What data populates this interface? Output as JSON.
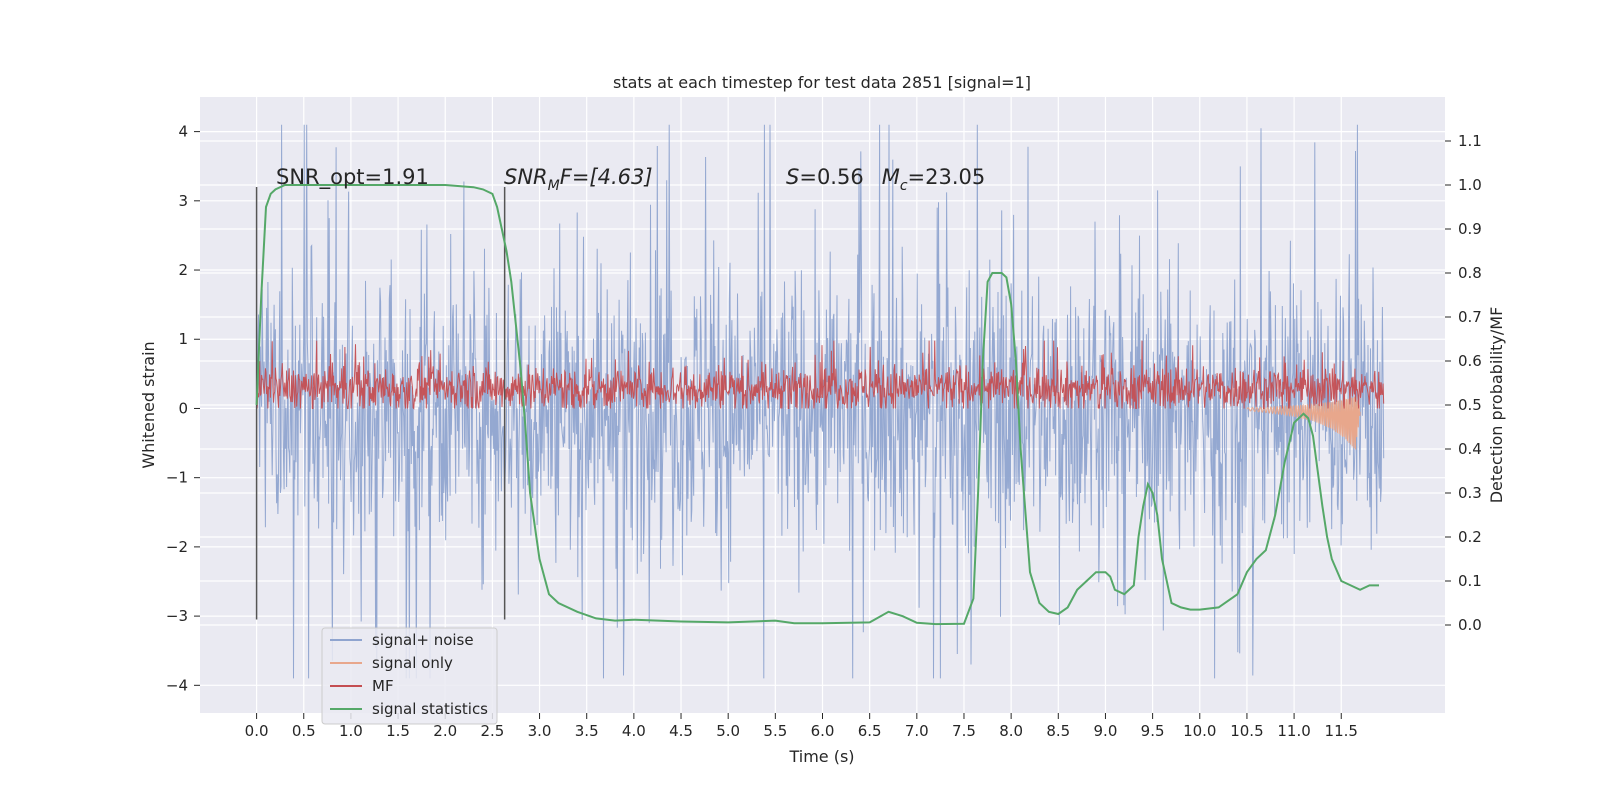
{
  "chart_data": {
    "type": "line",
    "title": "stats at each timestep for test data 2851 [signal=1]",
    "xlabel": "Time (s)",
    "ylabel_left": "Whitened strain",
    "ylabel_right": "Detection probability/MF",
    "xlim": [
      -0.6,
      12.6
    ],
    "ylim_left": [
      -4.4,
      4.5
    ],
    "ylim_right": [
      -0.2,
      1.2
    ],
    "grid": true,
    "background": "#eaeaf2",
    "x_ticks": [
      0.0,
      0.5,
      1.0,
      1.5,
      2.0,
      2.5,
      3.0,
      3.5,
      4.0,
      4.5,
      5.0,
      5.5,
      6.0,
      6.5,
      7.0,
      7.5,
      8.0,
      8.5,
      9.0,
      9.5,
      10.0,
      10.5,
      11.0,
      11.5
    ],
    "x_tick_labels": [
      "0.0",
      "0.5",
      "1.0",
      "1.5",
      "2.0",
      "2.5",
      "3.0",
      "3.5",
      "4.0",
      "4.5",
      "5.0",
      "5.5",
      "6.0",
      "6.5",
      "7.0",
      "7.5",
      "8.0",
      "8.5",
      "9.0",
      "9.5",
      "10.0",
      "10.5",
      "11.0",
      "11.5"
    ],
    "y_left_ticks": [
      4,
      3,
      2,
      1,
      0,
      -1,
      -2,
      -3,
      -4
    ],
    "y_left_tick_labels": [
      "4",
      "3",
      "2",
      "1",
      "0",
      "−1",
      "−2",
      "−3",
      "−4"
    ],
    "y_right_ticks": [
      1.1,
      1.0,
      0.9,
      0.8,
      0.7,
      0.6,
      0.5,
      0.4,
      0.3,
      0.2,
      0.1,
      0.0
    ],
    "y_right_tick_labels": [
      "1.1",
      "1.0",
      "0.9",
      "0.8",
      "0.7",
      "0.6",
      "0.5",
      "0.4",
      "0.3",
      "0.2",
      "0.1",
      "0.0"
    ],
    "annotations": {
      "snr_opt": "SNR_opt=1.91",
      "snr_mf_main": "SNR",
      "snr_mf_sub": "M",
      "snr_mf_rest": "F=[4.63]",
      "s_label": "S",
      "s_value": "=0.56",
      "mc_label": "M",
      "mc_sub": "c",
      "mc_value": "=23.05"
    },
    "vlines": [
      0.0,
      2.63
    ],
    "vline_range": [
      -3.05,
      3.2
    ],
    "series": [
      {
        "name": "signal+ noise",
        "axis": "left",
        "color": "#8fa4cf",
        "render": "noise",
        "x_range": [
          0.0,
          11.95
        ],
        "envelope": {
          "min": -3.9,
          "max": 4.1,
          "typical_low": -1.9,
          "typical_high": 1.8,
          "mean": 0.0
        }
      },
      {
        "name": "signal only",
        "axis": "left",
        "color": "#e8a78c",
        "render": "chirp",
        "x": [
          10.5,
          10.9,
          11.2,
          11.4,
          11.55,
          11.65,
          11.7
        ],
        "amplitude": [
          0.02,
          0.06,
          0.12,
          0.2,
          0.3,
          0.4,
          0.05
        ]
      },
      {
        "name": "MF",
        "axis": "left",
        "color": "#c44e52",
        "render": "noise",
        "x_range": [
          0.0,
          11.95
        ],
        "envelope": {
          "min": 0.0,
          "max": 0.98,
          "typical_low": 0.05,
          "typical_high": 0.65,
          "mean": 0.3
        }
      },
      {
        "name": "signal statistics",
        "axis": "right",
        "color": "#55a868",
        "render": "line",
        "x": [
          0.0,
          0.05,
          0.1,
          0.15,
          0.2,
          0.3,
          0.5,
          1.0,
          1.5,
          2.0,
          2.3,
          2.4,
          2.5,
          2.55,
          2.6,
          2.65,
          2.7,
          2.75,
          2.8,
          2.85,
          2.9,
          3.0,
          3.1,
          3.2,
          3.4,
          3.6,
          3.8,
          4.0,
          4.5,
          5.0,
          5.5,
          5.7,
          6.0,
          6.5,
          6.7,
          6.85,
          7.0,
          7.2,
          7.5,
          7.6,
          7.65,
          7.7,
          7.75,
          7.8,
          7.85,
          7.9,
          7.95,
          8.0,
          8.05,
          8.1,
          8.2,
          8.3,
          8.4,
          8.5,
          8.6,
          8.7,
          8.8,
          8.9,
          9.0,
          9.05,
          9.1,
          9.2,
          9.3,
          9.35,
          9.4,
          9.45,
          9.5,
          9.55,
          9.6,
          9.7,
          9.8,
          9.9,
          10.0,
          10.2,
          10.4,
          10.5,
          10.6,
          10.7,
          10.8,
          10.9,
          11.0,
          11.1,
          11.15,
          11.2,
          11.25,
          11.3,
          11.35,
          11.4,
          11.5,
          11.6,
          11.7,
          11.8,
          11.9
        ],
        "y": [
          0.5,
          0.75,
          0.95,
          0.98,
          0.99,
          1.0,
          1.0,
          1.0,
          1.0,
          1.0,
          0.995,
          0.99,
          0.98,
          0.95,
          0.9,
          0.85,
          0.78,
          0.68,
          0.58,
          0.45,
          0.3,
          0.15,
          0.07,
          0.05,
          0.03,
          0.015,
          0.01,
          0.012,
          0.008,
          0.006,
          0.01,
          0.004,
          0.004,
          0.006,
          0.03,
          0.02,
          0.005,
          0.002,
          0.003,
          0.06,
          0.3,
          0.6,
          0.78,
          0.8,
          0.8,
          0.8,
          0.79,
          0.73,
          0.6,
          0.4,
          0.12,
          0.05,
          0.03,
          0.025,
          0.04,
          0.08,
          0.1,
          0.12,
          0.12,
          0.11,
          0.08,
          0.07,
          0.09,
          0.2,
          0.27,
          0.32,
          0.3,
          0.25,
          0.15,
          0.05,
          0.04,
          0.035,
          0.035,
          0.04,
          0.07,
          0.12,
          0.15,
          0.17,
          0.25,
          0.37,
          0.46,
          0.48,
          0.47,
          0.43,
          0.35,
          0.27,
          0.2,
          0.15,
          0.1,
          0.09,
          0.08,
          0.09,
          0.09
        ],
        "x_note": "time in seconds"
      }
    ],
    "legend": {
      "placement": "lower-left",
      "entries": [
        "signal+ noise",
        "signal only",
        "MF",
        "signal statistics"
      ]
    }
  }
}
